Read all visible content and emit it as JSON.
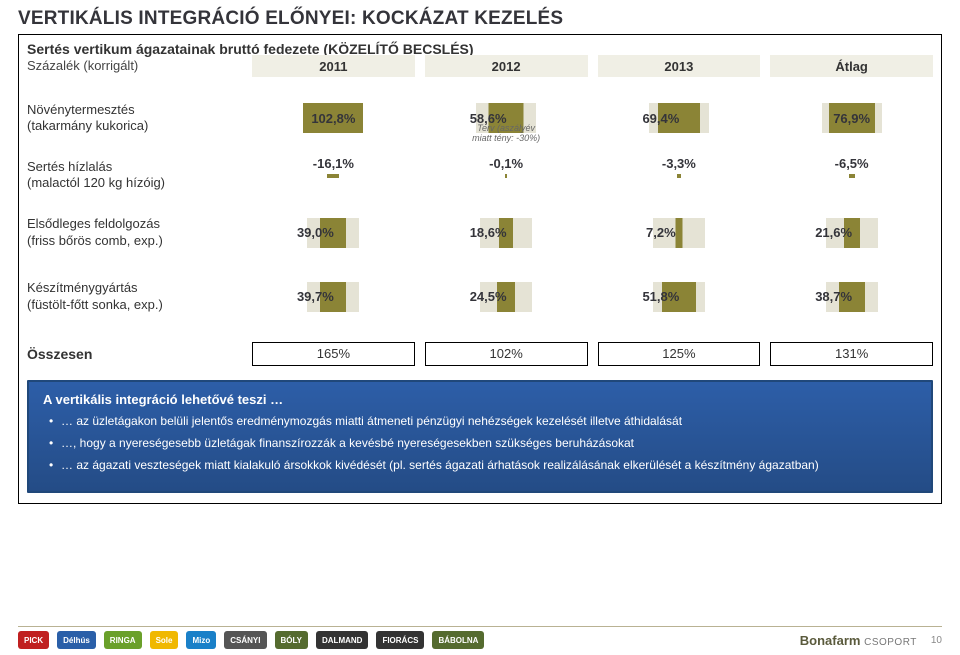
{
  "title": "VERTIKÁLIS INTEGRÁCIÓ ELŐNYEI: KOCKÁZAT KEZELÉS",
  "lead": "Sertés vertikum ágazatainak bruttó fedezete (KÖZELÍTŐ BECSLÉS)",
  "sub": "Százalék (korrigált)",
  "years": [
    "2011",
    "2012",
    "2013",
    "Átlag"
  ],
  "rows": [
    {
      "label": "Növénytermesztés",
      "label2": "(takarmány kukorica)",
      "vals": [
        "102,8%",
        "58,6%",
        "69,4%",
        "76,9%"
      ],
      "backW": [
        60,
        60,
        60,
        60
      ],
      "frontW": [
        60,
        35,
        42,
        46
      ],
      "note_idx": 1,
      "note": "Terv (aszályév\nmiatt tény: -30%)"
    },
    {
      "label": "Sertés hízlalás",
      "label2": "(malactól 120 kg hízóig)",
      "vals": [
        "-16,1%",
        "-0,1%",
        "-3,3%",
        "-6,5%"
      ],
      "neg": true,
      "negW": [
        12,
        2,
        4,
        6
      ]
    },
    {
      "label": "Elsődleges feldolgozás",
      "label2": "(friss bőrös comb, exp.)",
      "vals": [
        "39,0%",
        "18,6%",
        "7,2%",
        "21,6%"
      ],
      "backW": [
        52,
        52,
        52,
        52
      ],
      "frontW": [
        26,
        14,
        7,
        16
      ]
    },
    {
      "label": "Készítménygyártás",
      "label2": "(füstölt-főtt sonka, exp.)",
      "vals": [
        "39,7%",
        "24,5%",
        "51,8%",
        "38,7%"
      ],
      "backW": [
        52,
        52,
        52,
        52
      ],
      "frontW": [
        26,
        18,
        34,
        26
      ]
    }
  ],
  "totals_label": "Összesen",
  "totals": [
    "165%",
    "102%",
    "125%",
    "131%"
  ],
  "bluebox": {
    "heading": "A vertikális integráció lehetővé teszi …",
    "items": [
      "… az üzletágakon belüli jelentős eredménymozgás miatti átmeneti pénzügyi nehézségek kezelését illetve áthidalását",
      "…, hogy a nyereségesebb üzletágak finanszírozzák a kevésbé nyereségesekben szükséges beruházásokat",
      "… az ágazati veszteségek miatt kialakuló ársokkok kivédését (pl. sertés ágazati árhatások realizálásának elkerülését a készítmény ágazatban)"
    ]
  },
  "footer_logos": [
    {
      "text": "PICK",
      "bg": "#c02020"
    },
    {
      "text": "Délhús",
      "bg": "#2a5fa8"
    },
    {
      "text": "RINGA",
      "bg": "#6aa02a"
    },
    {
      "text": "Sole",
      "bg": "#f0b800"
    },
    {
      "text": "Mizo",
      "bg": "#1a80c8"
    },
    {
      "text": "CSÁNYI",
      "bg": "#555"
    },
    {
      "text": "BÓLY",
      "bg": "#556b2f"
    },
    {
      "text": "DALMAND",
      "bg": "#333"
    },
    {
      "text": "FIORÁCS",
      "bg": "#333"
    },
    {
      "text": "BÁBOLNA",
      "bg": "#556b2f"
    }
  ],
  "brand": "Bonafarm",
  "brand_sub": "CSOPORT",
  "page": "10",
  "colors": {
    "bar_back": "#e5e3d5",
    "bar_front": "#8b8436",
    "year_bg": "#f0efe5",
    "blue_top": "#2d5ea8",
    "blue_bot": "#244c86"
  }
}
